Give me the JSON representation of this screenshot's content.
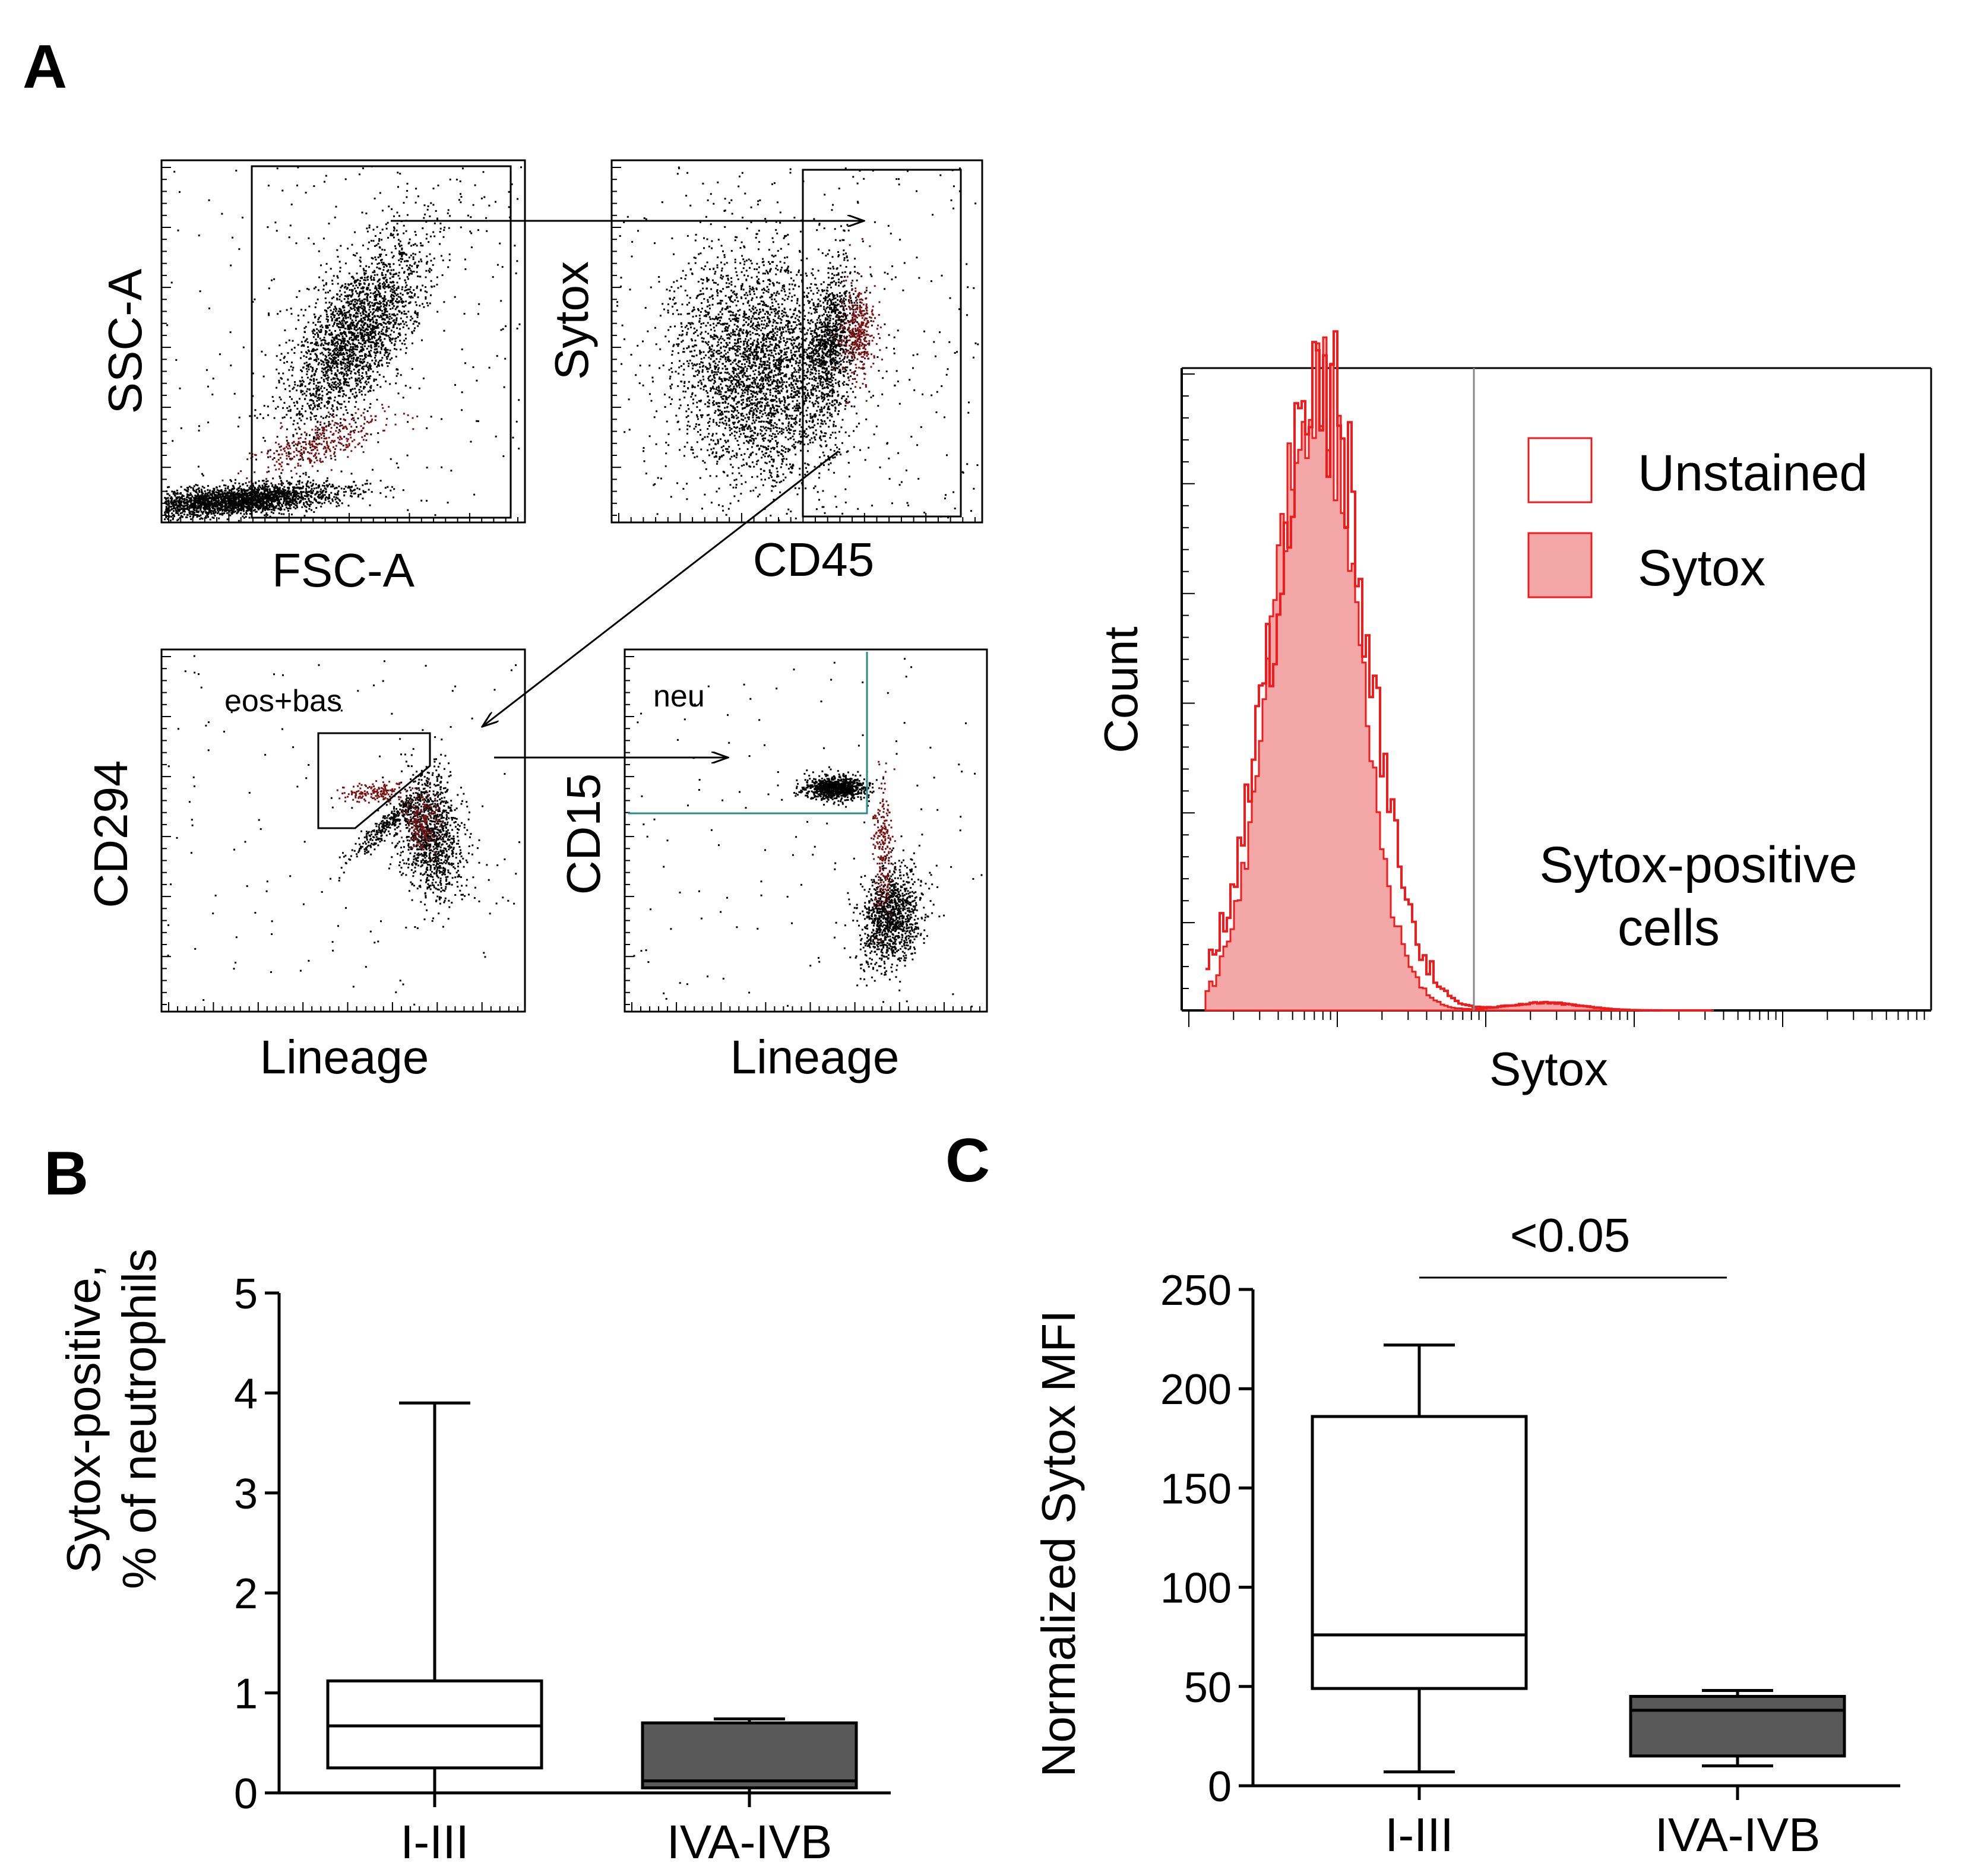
{
  "panel_labels": {
    "a": "A",
    "b": "B",
    "c": "C"
  },
  "colors": {
    "black": "#000000",
    "sytox_fill": "#f4a7a7",
    "sytox_line": "#ee1c1c",
    "dark_red": "#7a1010",
    "box_dark": "#595959",
    "gate_teal": "#2a8c8c"
  },
  "flow": {
    "plots": [
      {
        "id": "fsc-ssc",
        "xlabel": "FSC-A",
        "ylabel": "SSC-A"
      },
      {
        "id": "cd45-sytox",
        "xlabel": "CD45",
        "ylabel": "Sytox"
      },
      {
        "id": "lineage-cd294",
        "xlabel": "Lineage",
        "ylabel": "CD294",
        "gate_label": "eos+bas"
      },
      {
        "id": "lineage-cd15",
        "xlabel": "Lineage",
        "ylabel": "CD15",
        "gate_label": "neu"
      }
    ],
    "histogram": {
      "xlabel": "Sytox",
      "ylabel": "Count",
      "legend": [
        {
          "name": "Unstained",
          "style": "outline"
        },
        {
          "name": "Sytox",
          "style": "filled"
        }
      ],
      "annotation_line1": "Sytox-positive",
      "annotation_line2": "cells"
    }
  },
  "chart_data": [
    {
      "type": "box",
      "panel": "B",
      "ylabel_line1": "Sytox-positive,",
      "ylabel_line2": "% of neutrophils",
      "ylim": [
        0,
        5
      ],
      "yticks": [
        0,
        1,
        2,
        3,
        4,
        5
      ],
      "categories": [
        "I-III",
        "IVA-IVB"
      ],
      "boxes": [
        {
          "category": "I-III",
          "min": 0,
          "q1": 0.25,
          "median": 0.67,
          "q3": 1.12,
          "max": 3.9,
          "fill": "#ffffff"
        },
        {
          "category": "IVA-IVB",
          "min": 0,
          "q1": 0.05,
          "median": 0.12,
          "q3": 0.7,
          "max": 0.74,
          "fill": "#595959"
        }
      ]
    },
    {
      "type": "box",
      "panel": "C",
      "ylabel": "Normalized Sytox MFI",
      "ylim": [
        0,
        250
      ],
      "yticks": [
        0,
        50,
        100,
        150,
        200,
        250
      ],
      "categories": [
        "I-III",
        "IVA-IVB"
      ],
      "boxes": [
        {
          "category": "I-III",
          "min": 7,
          "q1": 49,
          "median": 76,
          "q3": 186,
          "max": 222,
          "fill": "#ffffff"
        },
        {
          "category": "IVA-IVB",
          "min": 10,
          "q1": 15,
          "median": 38,
          "q3": 45,
          "max": 48,
          "fill": "#595959"
        }
      ],
      "significance": "<0.05"
    }
  ]
}
